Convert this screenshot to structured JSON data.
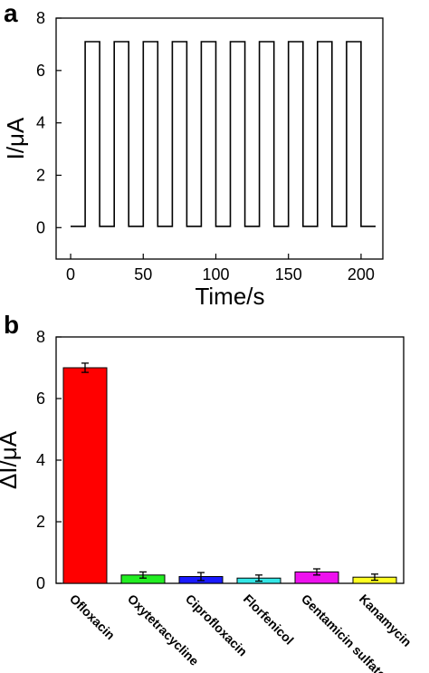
{
  "chart_data": [
    {
      "panel": "a",
      "type": "line",
      "xlabel": "Time/s",
      "ylabel": "I/μA",
      "xlim": [
        -10,
        215
      ],
      "ylim": [
        -1.2,
        8
      ],
      "xticks": [
        0,
        50,
        100,
        150,
        200
      ],
      "yticks": [
        0,
        2,
        4,
        6,
        8
      ],
      "grid": false,
      "legend": "none",
      "series": [
        {
          "color": "#000000",
          "x": [
            0,
            10,
            10,
            20,
            20,
            30,
            30,
            40,
            40,
            50,
            50,
            60,
            60,
            70,
            70,
            80,
            80,
            90,
            90,
            100,
            100,
            110,
            110,
            120,
            120,
            130,
            130,
            140,
            140,
            150,
            150,
            160,
            160,
            170,
            170,
            180,
            180,
            190,
            190,
            200,
            200,
            210
          ],
          "y": [
            0.05,
            0.05,
            7.1,
            7.1,
            0.05,
            0.05,
            7.1,
            7.1,
            0.05,
            0.05,
            7.1,
            7.1,
            0.05,
            0.05,
            7.1,
            7.1,
            0.05,
            0.05,
            7.1,
            7.1,
            0.05,
            0.05,
            7.1,
            7.1,
            0.05,
            0.05,
            7.1,
            7.1,
            0.05,
            0.05,
            7.1,
            7.1,
            0.05,
            0.05,
            7.1,
            7.1,
            0.05,
            0.05,
            7.1,
            7.1,
            0.05,
            0.05
          ]
        }
      ]
    },
    {
      "panel": "b",
      "type": "bar",
      "ylabel": "ΔI/μA",
      "xlabel": "",
      "ylim": [
        0,
        8
      ],
      "yticks": [
        0,
        2,
        4,
        6,
        8
      ],
      "grid": false,
      "categories": [
        "Ofloxacin",
        "Oxytetracycline",
        "Ciprofloxacin",
        "Florfenicol",
        "Gentamicin sulfate",
        "Kanamycin"
      ],
      "values": [
        7.0,
        0.27,
        0.22,
        0.17,
        0.37,
        0.2
      ],
      "errors": [
        0.15,
        0.1,
        0.13,
        0.1,
        0.1,
        0.1
      ],
      "colors": [
        "#ff0000",
        "#22ee22",
        "#1a1aff",
        "#33e6e6",
        "#ee11ee",
        "#ffff22"
      ]
    }
  ]
}
